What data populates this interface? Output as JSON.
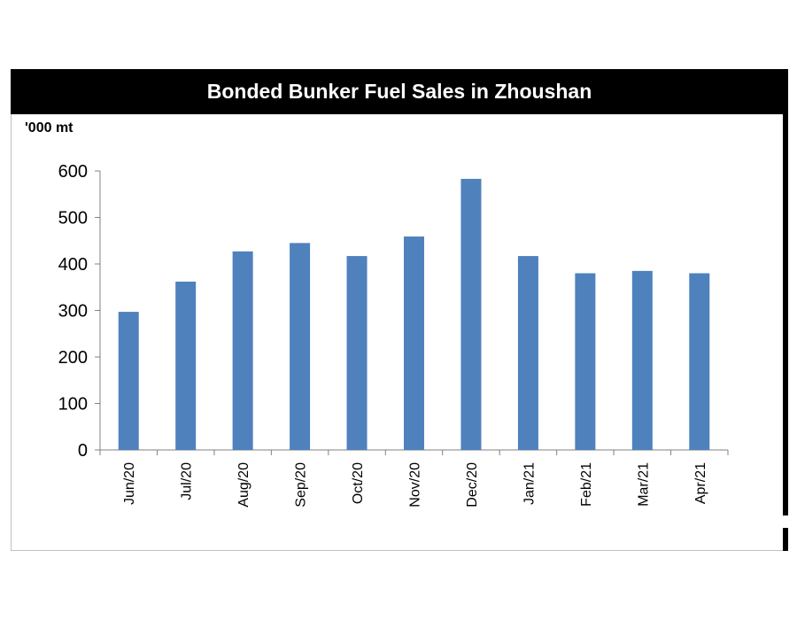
{
  "chart_data": {
    "type": "bar",
    "title": "Bonded Bunker Fuel Sales in Zhoushan",
    "unit_label": "'000 mt",
    "categories": [
      "Jun/20",
      "Jul/20",
      "Aug/20",
      "Sep/20",
      "Oct/20",
      "Nov/20",
      "Dec/20",
      "Jan/21",
      "Feb/21",
      "Mar/21",
      "Apr/21"
    ],
    "values": [
      297,
      362,
      427,
      445,
      417,
      459,
      583,
      417,
      380,
      385,
      380
    ],
    "ylim": [
      0,
      600
    ],
    "yticks": [
      "0",
      "100",
      "200",
      "300",
      "400",
      "500",
      "600"
    ],
    "bar_color": "#4f81bd",
    "grid": false
  }
}
